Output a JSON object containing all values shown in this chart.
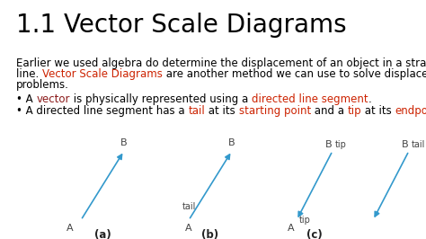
{
  "title": "1.1 Vector Scale Diagrams",
  "title_fontsize": 20,
  "title_color": "#000000",
  "bg_color": "#ffffff",
  "body_line1": "Earlier we used algebra do determine the displacement of an object in a straight",
  "body_line2_parts": [
    {
      "text": "line. ",
      "color": "#000000"
    },
    {
      "text": "Vector Scale Diagrams",
      "color": "#cc2200"
    },
    {
      "text": " are another method we can use to solve displacement",
      "color": "#000000"
    }
  ],
  "body_line3": "problems.",
  "bullet1_parts": [
    {
      "text": "• A ",
      "color": "#000000"
    },
    {
      "text": "vector",
      "color": "#8b1a1a"
    },
    {
      "text": " is physically represented using a ",
      "color": "#000000"
    },
    {
      "text": "directed line segment",
      "color": "#cc2200"
    },
    {
      "text": ".",
      "color": "#000000"
    }
  ],
  "bullet2_parts": [
    {
      "text": "• A directed line segment has a ",
      "color": "#000000"
    },
    {
      "text": "tail",
      "color": "#cc2200"
    },
    {
      "text": " at its ",
      "color": "#000000"
    },
    {
      "text": "starting point",
      "color": "#cc2200"
    },
    {
      "text": " and a ",
      "color": "#000000"
    },
    {
      "text": "tip",
      "color": "#cc2200"
    },
    {
      "text": " at its ",
      "color": "#000000"
    },
    {
      "text": "endpoint",
      "color": "#cc2200"
    },
    {
      "text": ".",
      "color": "#000000"
    }
  ],
  "body_fontsize": 8.5,
  "bullet_fontsize": 8.5,
  "arrow_color": "#3399cc",
  "label_color": "#444444",
  "caption_color": "#222222"
}
